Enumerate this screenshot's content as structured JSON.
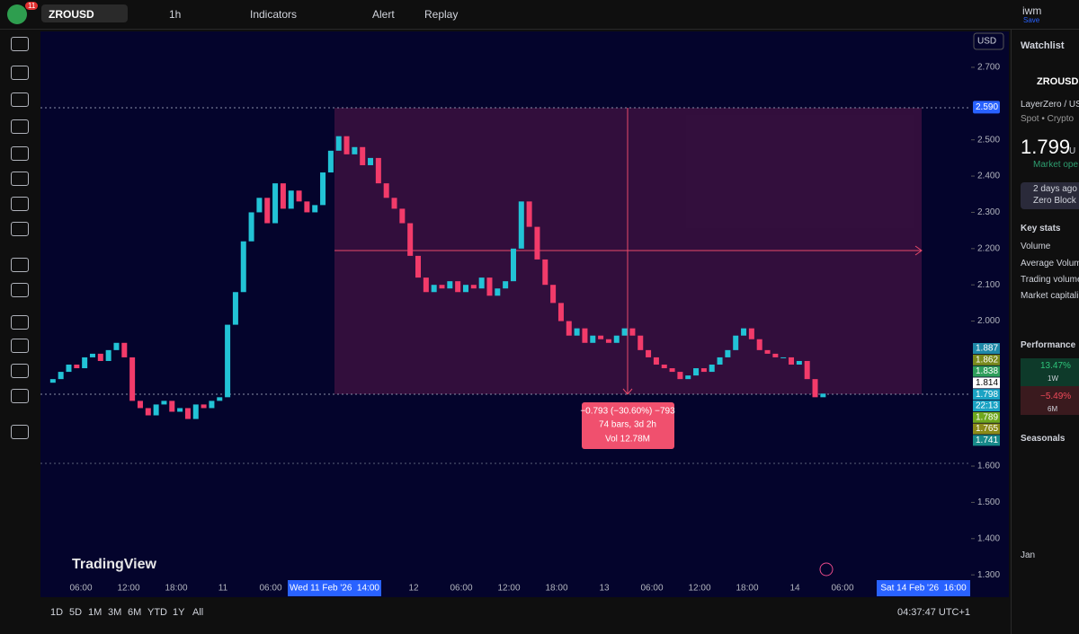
{
  "toolbar": {
    "badge": "11",
    "symbol": "ZROUSD",
    "interval": "1h",
    "indicators": "Indicators",
    "alert": "Alert",
    "replay": "Replay",
    "user": "iwm",
    "save": "Save"
  },
  "chart_data": {
    "type": "candlestick",
    "currency": "USD",
    "watermark": "TradingView",
    "closes": [
      1.83,
      1.84,
      1.86,
      1.88,
      1.87,
      1.9,
      1.91,
      1.89,
      1.92,
      1.94,
      1.9,
      1.78,
      1.76,
      1.74,
      1.77,
      1.78,
      1.75,
      1.76,
      1.73,
      1.77,
      1.76,
      1.78,
      1.79,
      1.99,
      2.08,
      2.22,
      2.3,
      2.34,
      2.27,
      2.38,
      2.31,
      2.36,
      2.33,
      2.3,
      2.32,
      2.41,
      2.47,
      2.51,
      2.46,
      2.48,
      2.43,
      2.45,
      2.38,
      2.34,
      2.31,
      2.27,
      2.18,
      2.12,
      2.08,
      2.1,
      2.09,
      2.11,
      2.08,
      2.1,
      2.09,
      2.12,
      2.07,
      2.09,
      2.11,
      2.2,
      2.33,
      2.26,
      2.17,
      2.1,
      2.05,
      2.0,
      1.96,
      1.98,
      1.94,
      1.96,
      1.95,
      1.94,
      1.96,
      1.98,
      1.96,
      1.92,
      1.9,
      1.88,
      1.87,
      1.86,
      1.84,
      1.85,
      1.87,
      1.86,
      1.88,
      1.9,
      1.92,
      1.96,
      1.98,
      1.95,
      1.92,
      1.91,
      1.9,
      1.9,
      1.88,
      1.89,
      1.84,
      1.79,
      1.8
    ],
    "up_color": "#22c3d6",
    "down_color": "#f23b6a",
    "ylim": [
      1.288,
      2.799
    ],
    "yticks": [
      {
        "value": 2.7,
        "label": "2.700"
      },
      {
        "value": 2.5,
        "label": "2.500"
      },
      {
        "value": 2.4,
        "label": "2.400"
      },
      {
        "value": 2.3,
        "label": "2.300"
      },
      {
        "value": 2.2,
        "label": "2.200"
      },
      {
        "value": 2.1,
        "label": "2.100"
      },
      {
        "value": 2.0,
        "label": "2.000"
      },
      {
        "value": 1.6,
        "label": "1.600"
      },
      {
        "value": 1.5,
        "label": "1.500"
      },
      {
        "value": 1.4,
        "label": "1.400"
      },
      {
        "value": 1.3,
        "label": "1.300"
      }
    ],
    "top_badge": {
      "value": 2.59,
      "label": "2.590",
      "color": "#2962ff"
    },
    "price_badges": [
      {
        "value": 1.887,
        "label": "1.887",
        "color": "#1e88a8"
      },
      {
        "value": 1.862,
        "label": "1.862",
        "color": "#7a8a1c"
      },
      {
        "value": 1.838,
        "label": "1.838",
        "color": "#2e9e5b"
      },
      {
        "value": 1.814,
        "label": "1.814",
        "color": "#ffffff"
      },
      {
        "value": 1.798,
        "label": "1.798",
        "color": "#1aa3c4"
      },
      {
        "value": 1.789,
        "label": "1.789",
        "color": "#6fa81e"
      },
      {
        "value": 1.765,
        "label": "1.765",
        "color": "#8a8a18"
      },
      {
        "value": 1.741,
        "label": "1.741",
        "color": "#178a8a"
      }
    ],
    "countdown": "22:13",
    "xtick_labels": [
      "06:00",
      "12:00",
      "18:00",
      "11",
      "06:00",
      "Wed 11 Feb '26  14:00",
      "12",
      "06:00",
      "12:00",
      "18:00",
      "13",
      "06:00",
      "12:00",
      "18:00",
      "14",
      "06:00",
      "Sat 14 Feb '26  16:00"
    ],
    "measure": {
      "change": "−0.793 (−30.60%) −793",
      "bars": "74 bars, 3d 2h",
      "volume": "Vol 12.78M"
    }
  },
  "bottom_bar": {
    "ranges": [
      "1D",
      "5D",
      "1M",
      "3M",
      "6M",
      "YTD",
      "1Y",
      "All"
    ],
    "clock": "04:37:47 UTC+1"
  },
  "side_panel": {
    "title": "Watchlist",
    "symbol": "ZROUSD",
    "name": "LayerZero / US",
    "market": "Spot • Crypto",
    "price": "1.799",
    "unit": "U",
    "status": "Market ope",
    "news_time": "2 days ago",
    "news_text": "Zero Block",
    "key_stats": "Key stats",
    "stats": [
      "Volume",
      "Average Volum",
      "Trading volume",
      "Market capitali"
    ],
    "performance": "Performance",
    "perf": [
      {
        "value": "13.47%",
        "period": "1W"
      },
      {
        "value": "−5.49%",
        "period": "6M"
      }
    ],
    "seasonals": "Seasonals",
    "month": "Jan"
  }
}
